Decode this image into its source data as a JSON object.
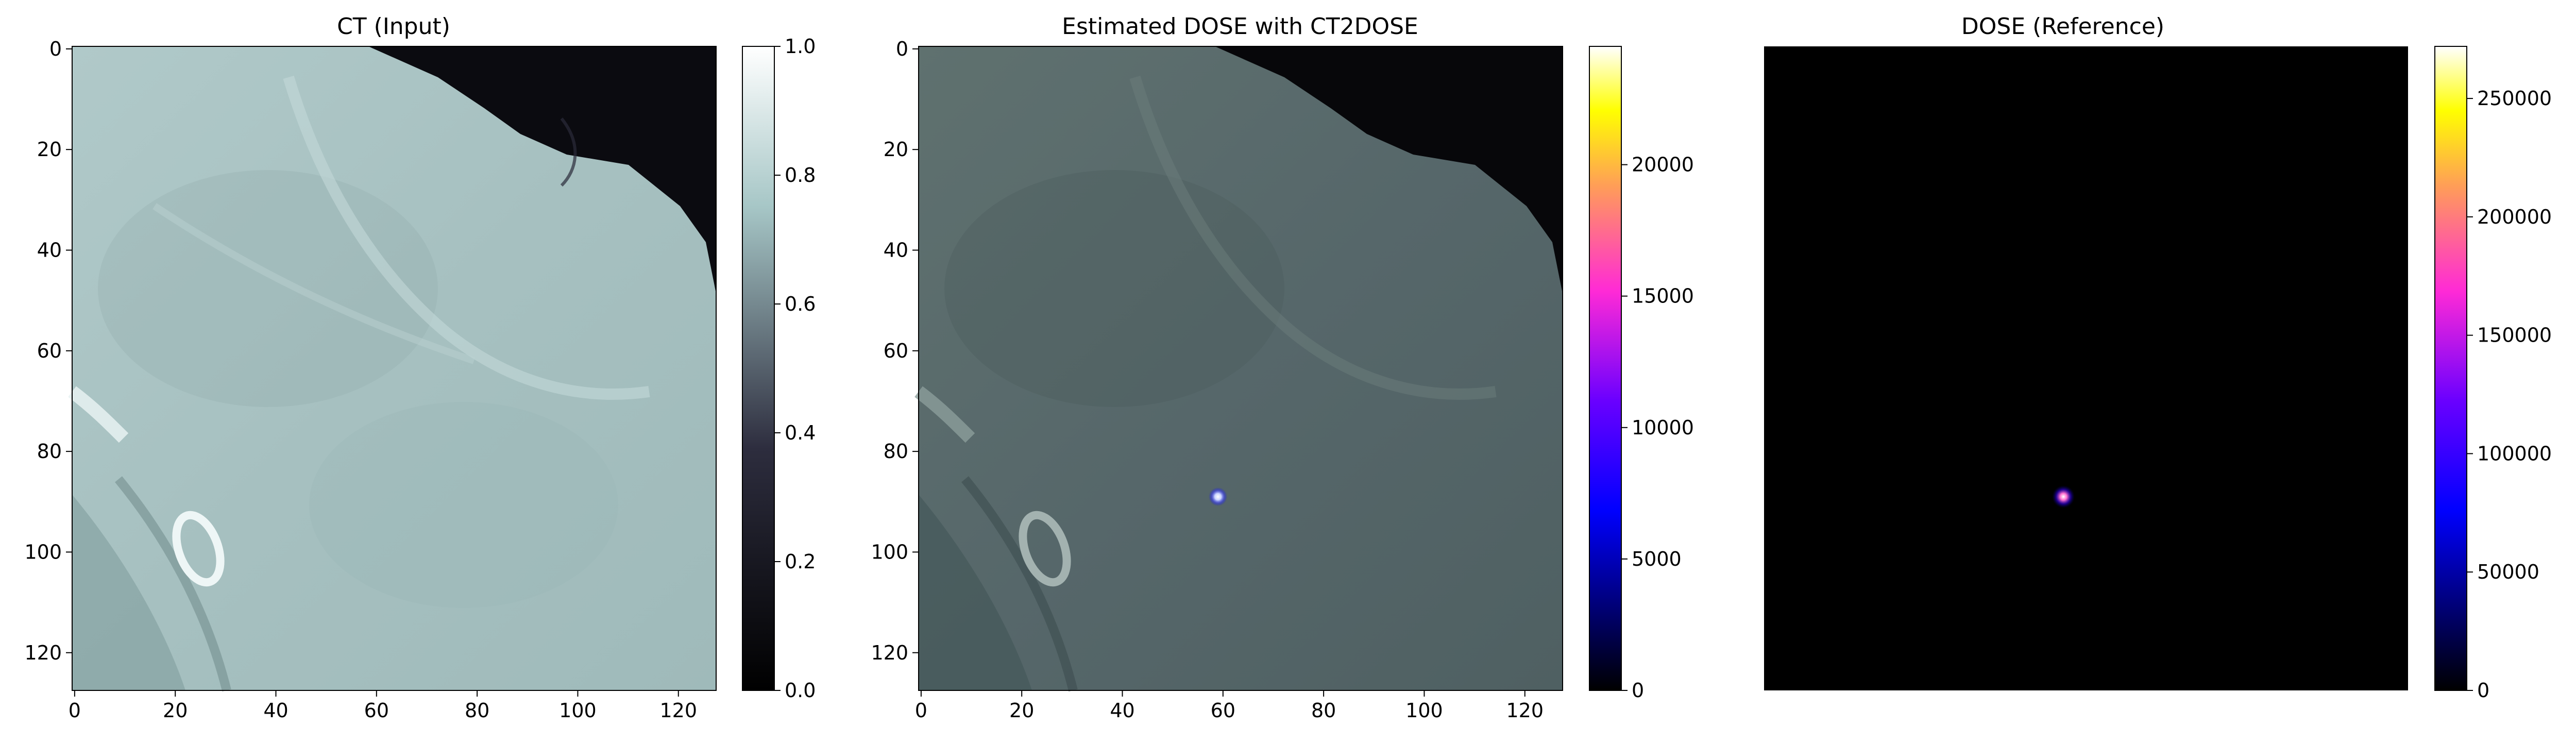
{
  "chart_data": [
    {
      "type": "heatmap",
      "title": "CT (Input)",
      "image_content": "CT axial slice of body edge: light cyan-grey tissue, dark air at top-right, bright bone ring lower-left",
      "x_ticks": [
        0,
        20,
        40,
        60,
        80,
        100,
        120
      ],
      "y_ticks": [
        0,
        20,
        40,
        60,
        80,
        100,
        120
      ],
      "xlim": [
        0,
        127
      ],
      "ylim": [
        127,
        0
      ],
      "colormap": "bone",
      "colorbar": {
        "range": [
          0,
          1.0
        ],
        "ticks": [
          "0.0",
          "0.2",
          "0.4",
          "0.6",
          "0.8",
          "1.0"
        ]
      }
    },
    {
      "type": "heatmap",
      "title": "Estimated DOSE with CT2DOSE",
      "image_content": "Same CT slice darkened as background with a small bright dose spot near x=59, y=89",
      "hotspot": {
        "x": 59,
        "y": 89
      },
      "x_ticks": [
        0,
        20,
        40,
        60,
        80,
        100,
        120
      ],
      "y_ticks": [
        0,
        20,
        40,
        60,
        80,
        100,
        120
      ],
      "xlim": [
        0,
        127
      ],
      "ylim": [
        127,
        0
      ],
      "colormap": "gnuplot2",
      "colorbar": {
        "range": [
          0,
          24500
        ],
        "ticks": [
          "0",
          "5000",
          "10000",
          "15000",
          "20000"
        ]
      }
    },
    {
      "type": "heatmap",
      "title": "DOSE (Reference)",
      "image_content": "All-black field with a single tiny bright point near x=59, y=89",
      "hotspot": {
        "x": 59,
        "y": 89
      },
      "axes_visible": false,
      "colormap": "gnuplot2",
      "colorbar": {
        "range": [
          0,
          272000
        ],
        "ticks": [
          "0",
          "50000",
          "100000",
          "150000",
          "200000",
          "250000"
        ]
      }
    }
  ],
  "colors": {
    "ct_tissue": "#a9c3c3",
    "ct_air": "#0b0b10",
    "dose_background": "#000000"
  }
}
